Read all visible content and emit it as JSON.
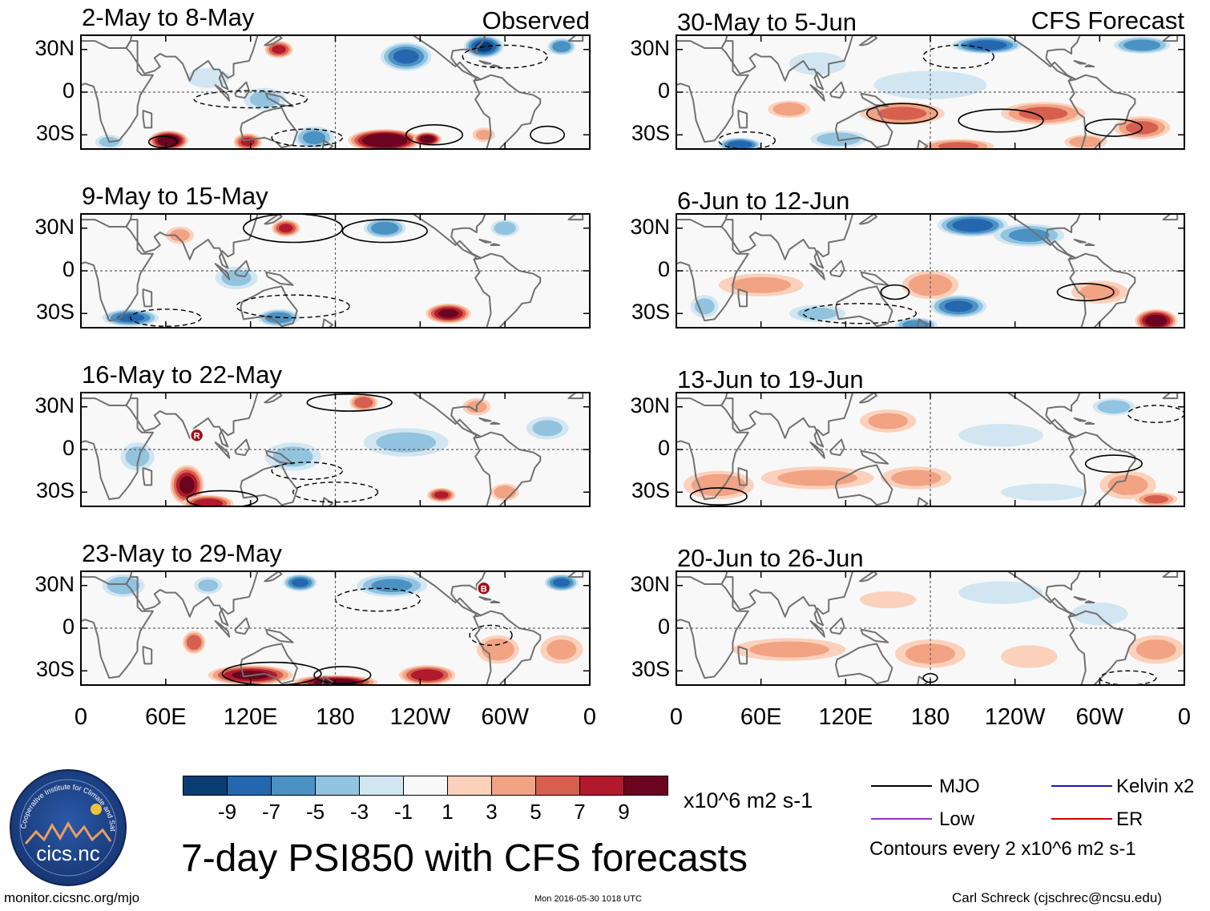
{
  "chart_data": {
    "type": "heatmap",
    "title": "7-day PSI850 with CFS forecasts",
    "variable": "PSI850",
    "units": "x10^6 m2 s-1",
    "column_headers": {
      "observed": "Observed",
      "forecast": "CFS Forecast"
    },
    "y_ticks": [
      "30N",
      "0",
      "30S"
    ],
    "x_ticks": [
      "0",
      "60E",
      "120E",
      "180",
      "120W",
      "60W",
      "0"
    ],
    "lon_range": [
      0,
      360
    ],
    "lat_range": [
      -40,
      40
    ],
    "colorbar": {
      "labels": [
        "-9",
        "-7",
        "-5",
        "-3",
        "-1",
        "1",
        "3",
        "5",
        "7",
        "9"
      ],
      "colors": [
        "#0a3d73",
        "#2467ae",
        "#4b92c4",
        "#92c3df",
        "#d2e6f1",
        "#f8f8f8",
        "#fbd1bc",
        "#f1a384",
        "#d65f4f",
        "#b11a2c",
        "#6a0420"
      ]
    },
    "panels": [
      {
        "title": "2-May to 8-May",
        "kind": "observed",
        "blobs": [
          [
            62,
            -34,
            14,
            7,
            11
          ],
          [
            118,
            -35,
            10,
            6,
            7
          ],
          [
            165,
            -32,
            14,
            8,
            -5
          ],
          [
            215,
            -34,
            26,
            8,
            12
          ],
          [
            245,
            -33,
            10,
            5,
            10
          ],
          [
            285,
            -30,
            8,
            5,
            3
          ],
          [
            140,
            30,
            10,
            6,
            7
          ],
          [
            230,
            25,
            18,
            10,
            -7
          ],
          [
            285,
            32,
            14,
            8,
            -9
          ],
          [
            340,
            32,
            10,
            6,
            -6
          ],
          [
            90,
            10,
            15,
            7,
            -2
          ],
          [
            130,
            -5,
            15,
            8,
            -3
          ],
          [
            20,
            -35,
            10,
            5,
            -3
          ]
        ],
        "mjo": [
          [
            250,
            -30,
            20,
            7
          ],
          [
            58,
            -35,
            10,
            4
          ],
          [
            330,
            -30,
            12,
            6
          ]
        ],
        "neg": [
          [
            120,
            -5,
            40,
            6
          ],
          [
            160,
            -32,
            25,
            6
          ],
          [
            300,
            25,
            30,
            8
          ]
        ],
        "markers": []
      },
      {
        "title": "9-May to 15-May",
        "kind": "observed",
        "blobs": [
          [
            260,
            -30,
            16,
            7,
            9
          ],
          [
            145,
            30,
            10,
            6,
            7
          ],
          [
            35,
            -33,
            20,
            6,
            -7
          ],
          [
            140,
            -33,
            15,
            6,
            -6
          ],
          [
            215,
            30,
            15,
            7,
            -6
          ],
          [
            300,
            30,
            10,
            6,
            -4
          ],
          [
            110,
            -5,
            15,
            8,
            -3
          ],
          [
            70,
            25,
            10,
            6,
            3
          ]
        ],
        "mjo": [
          [
            150,
            30,
            35,
            10
          ],
          [
            215,
            28,
            30,
            8
          ]
        ],
        "neg": [
          [
            150,
            -25,
            40,
            8
          ],
          [
            60,
            -33,
            25,
            6
          ]
        ],
        "markers": []
      },
      {
        "title": "16-May to 22-May",
        "kind": "observed",
        "blobs": [
          [
            75,
            -25,
            12,
            14,
            9
          ],
          [
            90,
            -38,
            18,
            6,
            8
          ],
          [
            200,
            33,
            10,
            6,
            6
          ],
          [
            255,
            -32,
            10,
            5,
            7
          ],
          [
            300,
            -30,
            10,
            6,
            4
          ],
          [
            150,
            -5,
            20,
            10,
            -3
          ],
          [
            230,
            5,
            30,
            10,
            -3
          ],
          [
            330,
            15,
            15,
            8,
            -3
          ],
          [
            40,
            -5,
            12,
            10,
            -3
          ],
          [
            280,
            30,
            10,
            6,
            3
          ]
        ],
        "mjo": [
          [
            190,
            33,
            30,
            6
          ],
          [
            100,
            -35,
            25,
            6
          ]
        ],
        "neg": [
          [
            180,
            -30,
            30,
            7
          ],
          [
            160,
            -15,
            25,
            6
          ]
        ],
        "markers": [
          [
            82,
            10,
            "R"
          ]
        ]
      },
      {
        "title": "23-May to 29-May",
        "kind": "observed",
        "blobs": [
          [
            120,
            -33,
            30,
            7,
            9
          ],
          [
            180,
            -38,
            30,
            5,
            10
          ],
          [
            245,
            -33,
            20,
            7,
            8
          ],
          [
            80,
            -10,
            8,
            8,
            6
          ],
          [
            295,
            -15,
            15,
            10,
            4
          ],
          [
            155,
            32,
            12,
            6,
            -7
          ],
          [
            220,
            30,
            25,
            8,
            -5
          ],
          [
            340,
            32,
            12,
            6,
            -7
          ],
          [
            30,
            30,
            15,
            8,
            -4
          ],
          [
            90,
            30,
            10,
            6,
            -3
          ],
          [
            340,
            -15,
            15,
            10,
            3
          ]
        ],
        "mjo": [
          [
            135,
            -32,
            35,
            8
          ],
          [
            185,
            -33,
            20,
            6
          ]
        ],
        "neg": [
          [
            210,
            20,
            30,
            8
          ],
          [
            290,
            -5,
            15,
            7
          ]
        ],
        "markers": [
          [
            285,
            28,
            "B"
          ]
        ]
      },
      {
        "title": "30-May to 5-Jun",
        "kind": "forecast",
        "blobs": [
          [
            220,
            33,
            25,
            6,
            -8
          ],
          [
            330,
            33,
            20,
            6,
            -6
          ],
          [
            45,
            -37,
            15,
            5,
            -8
          ],
          [
            115,
            -33,
            20,
            6,
            -4
          ],
          [
            160,
            -15,
            30,
            8,
            5
          ],
          [
            260,
            -15,
            30,
            8,
            5
          ],
          [
            330,
            -25,
            20,
            8,
            5
          ],
          [
            80,
            -12,
            15,
            6,
            4
          ],
          [
            200,
            -38,
            25,
            5,
            5
          ],
          [
            290,
            -35,
            15,
            5,
            4
          ],
          [
            100,
            20,
            20,
            8,
            -2
          ],
          [
            180,
            5,
            40,
            10,
            -2
          ]
        ],
        "mjo": [
          [
            160,
            -15,
            25,
            7
          ],
          [
            230,
            -20,
            30,
            8
          ],
          [
            310,
            -25,
            20,
            6
          ]
        ],
        "neg": [
          [
            50,
            -34,
            20,
            6
          ],
          [
            200,
            25,
            25,
            8
          ]
        ],
        "markers": []
      },
      {
        "title": "6-Jun to 12-Jun",
        "kind": "forecast",
        "blobs": [
          [
            210,
            32,
            25,
            8,
            -8
          ],
          [
            250,
            25,
            25,
            8,
            -5
          ],
          [
            340,
            -35,
            15,
            8,
            10
          ],
          [
            200,
            -25,
            20,
            8,
            -7
          ],
          [
            170,
            -38,
            15,
            5,
            -6
          ],
          [
            180,
            -10,
            20,
            10,
            4
          ],
          [
            60,
            -10,
            30,
            8,
            3
          ],
          [
            300,
            -15,
            20,
            8,
            3
          ],
          [
            100,
            -30,
            20,
            6,
            -3
          ],
          [
            20,
            -25,
            10,
            8,
            -3
          ]
        ],
        "mjo": [
          [
            290,
            -15,
            20,
            6
          ],
          [
            155,
            -15,
            10,
            5
          ]
        ],
        "neg": [
          [
            130,
            -30,
            40,
            7
          ]
        ],
        "markers": []
      },
      {
        "title": "13-Jun to 19-Jun",
        "kind": "forecast",
        "blobs": [
          [
            30,
            -25,
            25,
            10,
            4
          ],
          [
            100,
            -20,
            40,
            8,
            3
          ],
          [
            170,
            -20,
            25,
            8,
            3
          ],
          [
            260,
            -30,
            30,
            6,
            -2
          ],
          [
            320,
            -25,
            20,
            10,
            3
          ],
          [
            340,
            -35,
            15,
            5,
            5
          ],
          [
            310,
            30,
            15,
            6,
            -4
          ],
          [
            150,
            20,
            20,
            8,
            3
          ],
          [
            230,
            10,
            30,
            8,
            -2
          ]
        ],
        "mjo": [
          [
            310,
            -10,
            20,
            6
          ],
          [
            30,
            -33,
            20,
            6
          ]
        ],
        "neg": [
          [
            340,
            25,
            20,
            6
          ]
        ],
        "markers": []
      },
      {
        "title": "20-Jun to 26-Jun",
        "kind": "forecast",
        "blobs": [
          [
            80,
            -15,
            40,
            8,
            3
          ],
          [
            180,
            -18,
            25,
            10,
            3
          ],
          [
            250,
            -20,
            20,
            8,
            2
          ],
          [
            340,
            -15,
            20,
            10,
            3
          ],
          [
            150,
            20,
            20,
            6,
            2
          ],
          [
            230,
            25,
            30,
            8,
            -2
          ],
          [
            300,
            10,
            20,
            8,
            -2
          ]
        ],
        "mjo": [
          [
            180,
            -35,
            5,
            3
          ]
        ],
        "neg": [
          [
            320,
            -35,
            20,
            5
          ]
        ],
        "markers": []
      }
    ]
  },
  "colorbar_units": "x10^6 m2 s-1",
  "legend": {
    "mjo": "MJO",
    "kelvin": "Kelvin x2",
    "low": "Low",
    "er": "ER",
    "contours_note": "Contours every 2 x10^6 m2 s-1",
    "colors": {
      "mjo": "#000000",
      "kelvin": "#1a1ab0",
      "low": "#9b30d0",
      "er": "#d00000"
    }
  },
  "logo": {
    "text": "cics.nc",
    "arc_text": "Cooperative Institute for Climate and Satellites"
  },
  "footer": {
    "left": "monitor.cicsnc.org/mjo",
    "center": "Mon 2016-05-30 1018 UTC",
    "right": "Carl Schreck (cjschrec@ncsu.edu)"
  }
}
